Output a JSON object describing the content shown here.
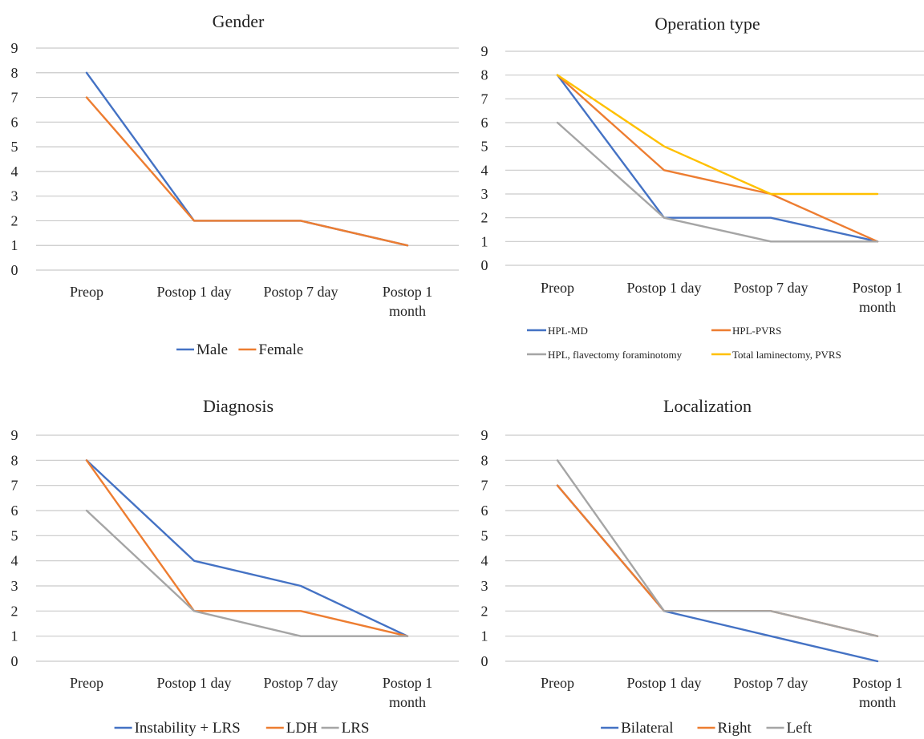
{
  "chart_data": [
    {
      "type": "line",
      "title": "Gender",
      "categories": [
        [
          "Preop"
        ],
        [
          "Postop 1 day"
        ],
        [
          "Postop 7 day"
        ],
        [
          "Postop 1",
          "month"
        ]
      ],
      "ylim": [
        0,
        9
      ],
      "yticks": [
        0,
        1,
        2,
        3,
        4,
        5,
        6,
        7,
        8,
        9
      ],
      "grid": true,
      "legend_position": "bottom",
      "series": [
        {
          "name": "Male",
          "color": "#4472C4",
          "values": [
            8,
            2,
            2,
            1
          ]
        },
        {
          "name": "Female",
          "color": "#ED7D31",
          "values": [
            7,
            2,
            2,
            1
          ]
        }
      ]
    },
    {
      "type": "line",
      "title": "Operation type",
      "categories": [
        [
          "Preop"
        ],
        [
          "Postop 1 day"
        ],
        [
          "Postop 7 day"
        ],
        [
          "Postop 1",
          "month"
        ]
      ],
      "ylim": [
        0,
        9
      ],
      "yticks": [
        0,
        1,
        2,
        3,
        4,
        5,
        6,
        7,
        8,
        9
      ],
      "grid": true,
      "legend_position": "bottom",
      "series": [
        {
          "name": "HPL-MD",
          "color": "#4472C4",
          "values": [
            8,
            2,
            2,
            1
          ]
        },
        {
          "name": "HPL-PVRS",
          "color": "#ED7D31",
          "values": [
            8,
            4,
            3,
            1
          ]
        },
        {
          "name": "HPL, flavectomy foraminotomy",
          "color": "#A5A5A5",
          "values": [
            6,
            2,
            1,
            1
          ]
        },
        {
          "name": "Total laminectomy, PVRS",
          "color": "#FFC000",
          "values": [
            8,
            5,
            3,
            3
          ]
        }
      ]
    },
    {
      "type": "line",
      "title": "Diagnosis",
      "categories": [
        [
          "Preop"
        ],
        [
          "Postop 1 day"
        ],
        [
          "Postop 7 day"
        ],
        [
          "Postop 1",
          "month"
        ]
      ],
      "ylim": [
        0,
        9
      ],
      "yticks": [
        0,
        1,
        2,
        3,
        4,
        5,
        6,
        7,
        8,
        9
      ],
      "grid": true,
      "legend_position": "bottom",
      "series": [
        {
          "name": "Instability + LRS",
          "color": "#4472C4",
          "values": [
            8,
            4,
            3,
            1
          ]
        },
        {
          "name": "LDH",
          "color": "#ED7D31",
          "values": [
            8,
            2,
            2,
            1
          ]
        },
        {
          "name": "LRS",
          "color": "#A5A5A5",
          "values": [
            6,
            2,
            1,
            1
          ]
        }
      ]
    },
    {
      "type": "line",
      "title": "Localization",
      "categories": [
        [
          "Preop"
        ],
        [
          "Postop 1 day"
        ],
        [
          "Postop 7 day"
        ],
        [
          "Postop 1",
          "month"
        ]
      ],
      "ylim": [
        0,
        9
      ],
      "yticks": [
        0,
        1,
        2,
        3,
        4,
        5,
        6,
        7,
        8,
        9
      ],
      "grid": true,
      "legend_position": "bottom",
      "series": [
        {
          "name": "Bilateral",
          "color": "#4472C4",
          "values": [
            7,
            2,
            1,
            0
          ]
        },
        {
          "name": "Right",
          "color": "#ED7D31",
          "values": [
            7,
            2,
            2,
            1
          ]
        },
        {
          "name": "Left",
          "color": "#A5A5A5",
          "values": [
            8,
            2,
            2,
            1
          ]
        }
      ]
    }
  ]
}
